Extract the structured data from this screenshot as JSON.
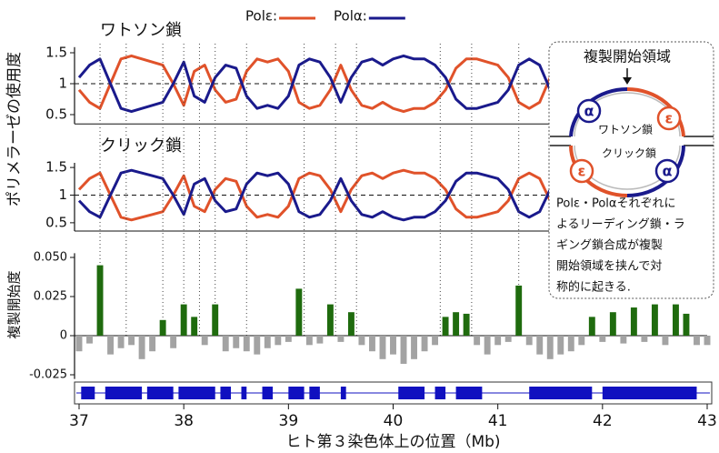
{
  "chart_data": [
    {
      "type": "line",
      "title": "ワトソン鎖",
      "ylabel": "ポリメラーゼの使用度",
      "x": [
        37.0,
        37.1,
        37.2,
        37.3,
        37.4,
        37.5,
        37.6,
        37.7,
        37.8,
        37.9,
        38.0,
        38.1,
        38.2,
        38.3,
        38.4,
        38.5,
        38.6,
        38.7,
        38.8,
        38.9,
        39.0,
        39.1,
        39.2,
        39.3,
        39.4,
        39.5,
        39.6,
        39.7,
        39.8,
        39.9,
        40.0,
        40.1,
        40.2,
        40.3,
        40.4,
        40.5,
        40.6,
        40.7,
        40.8,
        40.9,
        41.0,
        41.1,
        41.2,
        41.3,
        41.4,
        41.5,
        41.6,
        41.7,
        41.8,
        41.9,
        42.0,
        42.1,
        42.2,
        42.3,
        42.4,
        42.5,
        42.6,
        42.7,
        42.8,
        42.9,
        43.0
      ],
      "series": [
        {
          "name": "Polε:",
          "color": "#e0522a",
          "values": [
            0.9,
            0.7,
            0.6,
            1.0,
            1.4,
            1.45,
            1.4,
            1.35,
            1.3,
            1.0,
            0.65,
            1.2,
            1.3,
            0.9,
            0.7,
            0.75,
            1.2,
            1.4,
            1.35,
            1.4,
            1.2,
            0.7,
            0.6,
            0.65,
            0.9,
            1.3,
            0.9,
            0.65,
            0.6,
            0.7,
            0.6,
            0.55,
            0.6,
            0.6,
            0.7,
            0.9,
            1.25,
            1.4,
            1.4,
            1.35,
            1.3,
            1.1,
            0.7,
            0.6,
            0.7,
            1.1,
            1.35,
            1.4,
            1.35,
            1.3,
            1.2,
            0.8,
            0.7,
            1.0,
            1.3,
            1.25,
            0.9,
            0.75,
            1.2,
            1.4,
            1.3
          ]
        },
        {
          "name": "Polα:",
          "color": "#1a1a8c",
          "values": [
            1.1,
            1.3,
            1.4,
            1.0,
            0.6,
            0.55,
            0.6,
            0.65,
            0.7,
            1.0,
            1.35,
            0.8,
            0.7,
            1.1,
            1.3,
            1.25,
            0.8,
            0.6,
            0.65,
            0.6,
            0.8,
            1.3,
            1.4,
            1.35,
            1.1,
            0.7,
            1.1,
            1.35,
            1.4,
            1.3,
            1.4,
            1.45,
            1.4,
            1.4,
            1.3,
            1.1,
            0.75,
            0.6,
            0.6,
            0.65,
            0.7,
            0.9,
            1.3,
            1.4,
            1.3,
            0.9,
            0.65,
            0.6,
            0.65,
            0.7,
            0.8,
            1.2,
            1.3,
            1.0,
            0.7,
            0.75,
            1.1,
            1.25,
            0.8,
            0.6,
            0.7
          ]
        }
      ],
      "xlim": [
        37,
        43
      ],
      "ylim": [
        0.35,
        1.65
      ],
      "yticks": [
        0.5,
        1,
        1.5
      ],
      "reference_line": 1
    },
    {
      "type": "line",
      "title": "クリック鎖",
      "x": [
        37.0,
        37.1,
        37.2,
        37.3,
        37.4,
        37.5,
        37.6,
        37.7,
        37.8,
        37.9,
        38.0,
        38.1,
        38.2,
        38.3,
        38.4,
        38.5,
        38.6,
        38.7,
        38.8,
        38.9,
        39.0,
        39.1,
        39.2,
        39.3,
        39.4,
        39.5,
        39.6,
        39.7,
        39.8,
        39.9,
        40.0,
        40.1,
        40.2,
        40.3,
        40.4,
        40.5,
        40.6,
        40.7,
        40.8,
        40.9,
        41.0,
        41.1,
        41.2,
        41.3,
        41.4,
        41.5,
        41.6,
        41.7,
        41.8,
        41.9,
        42.0,
        42.1,
        42.2,
        42.3,
        42.4,
        42.5,
        42.6,
        42.7,
        42.8,
        42.9,
        43.0
      ],
      "series": [
        {
          "color": "#e0522a",
          "values": [
            1.1,
            1.3,
            1.4,
            1.0,
            0.6,
            0.55,
            0.6,
            0.65,
            0.7,
            1.0,
            1.35,
            0.8,
            0.7,
            1.1,
            1.3,
            1.25,
            0.8,
            0.6,
            0.65,
            0.6,
            0.8,
            1.3,
            1.4,
            1.35,
            1.1,
            0.7,
            1.1,
            1.35,
            1.4,
            1.3,
            1.4,
            1.45,
            1.4,
            1.4,
            1.3,
            1.1,
            0.75,
            0.6,
            0.6,
            0.65,
            0.7,
            0.9,
            1.3,
            1.4,
            1.3,
            0.9,
            0.65,
            0.6,
            0.65,
            0.7,
            0.8,
            1.2,
            1.3,
            1.0,
            0.7,
            0.75,
            1.1,
            1.25,
            0.8,
            0.6,
            0.7
          ]
        },
        {
          "color": "#1a1a8c",
          "values": [
            0.9,
            0.7,
            0.6,
            1.0,
            1.4,
            1.45,
            1.4,
            1.35,
            1.3,
            1.0,
            0.65,
            1.2,
            1.3,
            0.9,
            0.7,
            0.75,
            1.2,
            1.4,
            1.35,
            1.4,
            1.2,
            0.7,
            0.6,
            0.65,
            0.9,
            1.3,
            0.9,
            0.65,
            0.6,
            0.7,
            0.6,
            0.55,
            0.6,
            0.6,
            0.7,
            0.9,
            1.25,
            1.4,
            1.4,
            1.35,
            1.3,
            1.1,
            0.7,
            0.6,
            0.7,
            1.1,
            1.35,
            1.4,
            1.35,
            1.3,
            1.2,
            0.8,
            0.7,
            1.0,
            1.3,
            1.25,
            0.9,
            0.75,
            1.2,
            1.4,
            1.3
          ]
        }
      ],
      "xlim": [
        37,
        43
      ],
      "ylim": [
        0.35,
        1.65
      ],
      "yticks": [
        0.5,
        1,
        1.5
      ],
      "reference_line": 1
    },
    {
      "type": "bar",
      "ylabel": "複製開始度",
      "x": [
        37.0,
        37.1,
        37.2,
        37.3,
        37.4,
        37.5,
        37.6,
        37.7,
        37.8,
        37.9,
        38.0,
        38.1,
        38.2,
        38.3,
        38.4,
        38.5,
        38.6,
        38.7,
        38.8,
        38.9,
        39.0,
        39.1,
        39.2,
        39.3,
        39.4,
        39.5,
        39.6,
        39.7,
        39.8,
        39.9,
        40.0,
        40.1,
        40.2,
        40.3,
        40.4,
        40.5,
        40.6,
        40.7,
        40.8,
        40.9,
        41.0,
        41.1,
        41.2,
        41.3,
        41.4,
        41.5,
        41.6,
        41.7,
        41.8,
        41.9,
        42.0,
        42.1,
        42.2,
        42.3,
        42.4,
        42.5,
        42.6,
        42.7,
        42.8,
        42.9,
        43.0
      ],
      "values": [
        -0.01,
        -0.005,
        0.045,
        -0.012,
        -0.008,
        -0.006,
        -0.015,
        -0.01,
        0.01,
        -0.008,
        0.02,
        0.012,
        -0.006,
        0.02,
        -0.01,
        -0.008,
        -0.01,
        -0.012,
        -0.008,
        -0.006,
        -0.004,
        0.03,
        -0.006,
        -0.005,
        0.02,
        -0.004,
        0.015,
        -0.006,
        -0.01,
        -0.015,
        -0.012,
        -0.018,
        -0.015,
        -0.01,
        -0.006,
        0.012,
        0.015,
        0.014,
        -0.006,
        -0.012,
        -0.006,
        -0.004,
        0.032,
        -0.006,
        -0.012,
        -0.015,
        -0.012,
        -0.01,
        -0.006,
        0.012,
        -0.004,
        0.015,
        -0.005,
        0.018,
        -0.004,
        0.02,
        -0.006,
        0.02,
        0.014,
        -0.006,
        -0.006
      ],
      "positive_color": "#1f6b0e",
      "negative_color": "#a3a3a3",
      "xlim": [
        37,
        43
      ],
      "ylim": [
        -0.03,
        0.055
      ],
      "yticks": [
        -0.025,
        0,
        0.025,
        {
          "value": 0.05,
          "label": "0.050"
        }
      ],
      "origin_lines": [
        37.2,
        37.45,
        37.8,
        38.0,
        38.15,
        38.3,
        38.6,
        39.15,
        39.45,
        39.65,
        40.45,
        40.75,
        41.2
      ]
    },
    {
      "type": "track",
      "color": "#1010c0",
      "intervals": [
        [
          37.02,
          37.15
        ],
        [
          37.25,
          37.6
        ],
        [
          37.65,
          37.9
        ],
        [
          37.95,
          38.3
        ],
        [
          38.35,
          38.45
        ],
        [
          38.55,
          38.6
        ],
        [
          38.75,
          38.85
        ],
        [
          39.0,
          39.15
        ],
        [
          39.2,
          39.3
        ],
        [
          39.5,
          39.55
        ],
        [
          40.05,
          40.3
        ],
        [
          40.4,
          40.5
        ],
        [
          40.6,
          40.85
        ],
        [
          41.3,
          41.9
        ],
        [
          42.0,
          42.9
        ]
      ],
      "xlim": [
        37,
        43
      ],
      "xticks": [
        37,
        38,
        39,
        40,
        41,
        42,
        43
      ],
      "xlabel": "ヒト第３染色体上の位置（Mb)"
    }
  ],
  "diagram": {
    "title": "複製開始領域",
    "watson": "ワトソン鎖",
    "crick": "クリック鎖",
    "alpha": "α",
    "epsilon": "ε",
    "description": [
      "Polε・Polαそれぞれに",
      "よるリーディング鎖・ラ",
      "ギング鎖合成が複製",
      "開始領域を挟んで対",
      "称的に起きる."
    ]
  }
}
